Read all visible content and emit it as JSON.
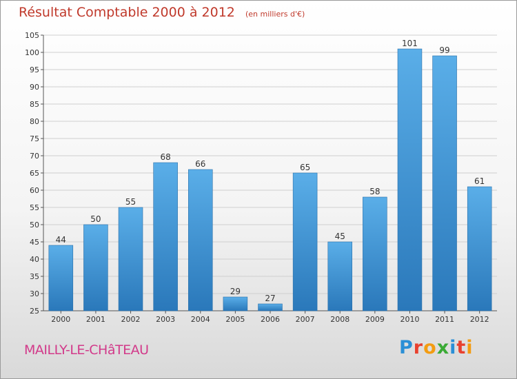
{
  "header": {
    "title": "Résultat Comptable 2000 à 2012",
    "subtitle": "(en milliers d'€)"
  },
  "footer": {
    "commune": "MAILLY-LE-CHâTEAU",
    "logo_letters": [
      {
        "char": "P",
        "color": "#2a8fd6"
      },
      {
        "char": "r",
        "color": "#e8412f"
      },
      {
        "char": "o",
        "color": "#f39c12"
      },
      {
        "char": "x",
        "color": "#3aaa35"
      },
      {
        "char": "i",
        "color": "#2a8fd6"
      },
      {
        "char": "t",
        "color": "#e8412f"
      },
      {
        "char": "i",
        "color": "#f39c12"
      }
    ]
  },
  "colors": {
    "bar_top": "#5aaee8",
    "bar_bottom": "#2a78ba",
    "grid": "#cfcfcf",
    "axis": "#555555"
  },
  "chart_data": {
    "type": "bar",
    "title": "Résultat Comptable 2000 à 2012",
    "subtitle": "(en milliers d'€)",
    "categories": [
      "2000",
      "2001",
      "2002",
      "2003",
      "2004",
      "2005",
      "2006",
      "2007",
      "2008",
      "2009",
      "2010",
      "2011",
      "2012"
    ],
    "values": [
      44,
      50,
      55,
      68,
      66,
      29,
      27,
      65,
      45,
      58,
      101,
      99,
      61
    ],
    "ylim": [
      25,
      105
    ],
    "yticks": [
      25,
      30,
      35,
      40,
      45,
      50,
      55,
      60,
      65,
      70,
      75,
      80,
      85,
      90,
      95,
      100,
      105
    ],
    "grid": true,
    "legend": "none"
  }
}
